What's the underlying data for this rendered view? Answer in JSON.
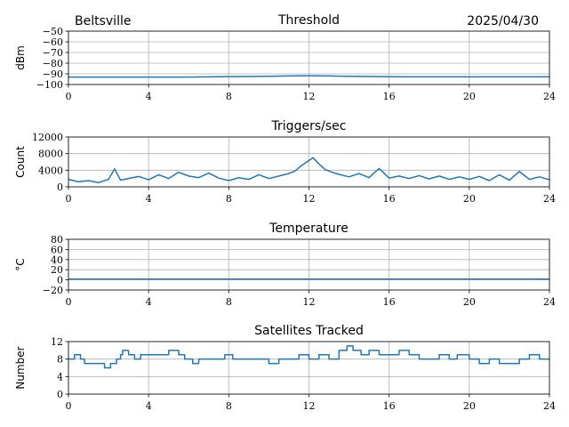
{
  "header": {
    "station": "Beltsville",
    "date": "2025/04/30"
  },
  "colors": {
    "series": "#1f77b4",
    "grid": "#b0b0b0"
  },
  "chart_data": [
    {
      "id": "threshold",
      "type": "line",
      "title": "Threshold",
      "xlabel": "",
      "ylabel": "dBm",
      "xlim": [
        0,
        24
      ],
      "ylim": [
        -100,
        -50
      ],
      "xticks": [
        0,
        4,
        8,
        12,
        16,
        20,
        24
      ],
      "yticks": [
        -50,
        -60,
        -70,
        -80,
        -90,
        -100
      ],
      "ytick_labels": [
        "−50",
        "−60",
        "−70",
        "−80",
        "−90",
        "−100"
      ],
      "grid": true,
      "series": [
        {
          "x": [
            0,
            1,
            2,
            3,
            4,
            5,
            6,
            7,
            8,
            9,
            10,
            11,
            12,
            13,
            14,
            15,
            16,
            17,
            18,
            19,
            20,
            21,
            22,
            23,
            24
          ],
          "y": [
            -93,
            -93,
            -93,
            -93,
            -93,
            -93,
            -93,
            -92.8,
            -92.6,
            -92.5,
            -92.3,
            -92,
            -91.8,
            -92,
            -92.3,
            -92.5,
            -92.7,
            -92.8,
            -92.8,
            -92.8,
            -92.8,
            -92.8,
            -92.8,
            -92.8,
            -92.8
          ]
        }
      ]
    },
    {
      "id": "triggers",
      "type": "line",
      "title": "Triggers/sec",
      "xlabel": "",
      "ylabel": "Count",
      "xlim": [
        0,
        24
      ],
      "ylim": [
        0,
        12000
      ],
      "xticks": [
        0,
        4,
        8,
        12,
        16,
        20,
        24
      ],
      "yticks": [
        0,
        4000,
        8000,
        12000
      ],
      "ytick_labels": [
        "0",
        "4000",
        "8000",
        "12000"
      ],
      "grid": true,
      "series": [
        {
          "x": [
            0,
            0.5,
            1,
            1.5,
            2,
            2.3,
            2.6,
            3,
            3.5,
            4,
            4.5,
            5,
            5.5,
            6,
            6.5,
            7,
            7.5,
            8,
            8.5,
            9,
            9.5,
            10,
            10.5,
            11,
            11.3,
            11.6,
            11.9,
            12.2,
            12.5,
            12.8,
            13.1,
            13.5,
            14,
            14.5,
            15,
            15.5,
            16,
            16.5,
            17,
            17.5,
            18,
            18.5,
            19,
            19.5,
            20,
            20.5,
            21,
            21.5,
            22,
            22.5,
            23,
            23.5,
            24
          ],
          "y": [
            1800,
            1200,
            1500,
            1000,
            1800,
            4300,
            1600,
            2000,
            2500,
            1700,
            2900,
            2000,
            3500,
            2600,
            2200,
            3300,
            2100,
            1500,
            2200,
            1800,
            2900,
            2000,
            2600,
            3200,
            3800,
            5000,
            6000,
            7000,
            5500,
            4200,
            3600,
            3000,
            2400,
            3200,
            2200,
            4400,
            2100,
            2600,
            2000,
            2700,
            1900,
            2600,
            1800,
            2400,
            1800,
            2500,
            1500,
            2900,
            1600,
            3700,
            1800,
            2400,
            1700
          ]
        }
      ]
    },
    {
      "id": "temperature",
      "type": "line",
      "title": "Temperature",
      "xlabel": "",
      "ylabel": "°C",
      "xlim": [
        0,
        24
      ],
      "ylim": [
        -20,
        80
      ],
      "xticks": [
        0,
        4,
        8,
        12,
        16,
        20,
        24
      ],
      "yticks": [
        -20,
        0,
        20,
        40,
        60,
        80
      ],
      "ytick_labels": [
        "−20",
        "0",
        "20",
        "40",
        "60",
        "80"
      ],
      "grid": true,
      "series": [
        {
          "x": [
            0,
            24
          ],
          "y": [
            1.5,
            1.5
          ]
        }
      ]
    },
    {
      "id": "satellites",
      "type": "line",
      "title": "Satellites Tracked",
      "xlabel": "",
      "ylabel": "Number",
      "xlim": [
        0,
        24
      ],
      "ylim": [
        0,
        12
      ],
      "xticks": [
        0,
        4,
        8,
        12,
        16,
        20,
        24
      ],
      "yticks": [
        0,
        4,
        8,
        12
      ],
      "ytick_labels": [
        "0",
        "4",
        "8",
        "12"
      ],
      "grid": true,
      "series": [
        {
          "step": true,
          "x": [
            0,
            0.3,
            0.6,
            0.8,
            1.5,
            1.8,
            2.1,
            2.4,
            2.6,
            2.7,
            3.0,
            3.3,
            3.6,
            4.0,
            4.5,
            5.0,
            5.5,
            5.8,
            6.2,
            6.5,
            7.0,
            7.5,
            7.8,
            8.2,
            8.5,
            9.0,
            9.5,
            10.0,
            10.5,
            11.0,
            11.5,
            12.0,
            12.5,
            13.0,
            13.5,
            13.9,
            14.2,
            14.6,
            15.0,
            15.5,
            16.0,
            16.5,
            17.0,
            17.5,
            18.0,
            18.5,
            19.0,
            19.4,
            19.7,
            20.0,
            20.5,
            21.0,
            21.5,
            22.0,
            22.5,
            23.0,
            23.5,
            24.0
          ],
          "y": [
            8,
            9,
            8,
            7,
            7,
            6,
            7,
            8,
            9,
            10,
            9,
            8,
            9,
            9,
            9,
            10,
            9,
            8,
            7,
            8,
            8,
            8,
            9,
            8,
            8,
            8,
            8,
            7,
            8,
            8,
            9,
            8,
            9,
            8,
            10,
            11,
            10,
            9,
            10,
            9,
            9,
            10,
            9,
            8,
            8,
            9,
            8,
            9,
            9,
            8,
            7,
            8,
            7,
            7,
            8,
            9,
            8,
            8
          ]
        }
      ]
    }
  ]
}
